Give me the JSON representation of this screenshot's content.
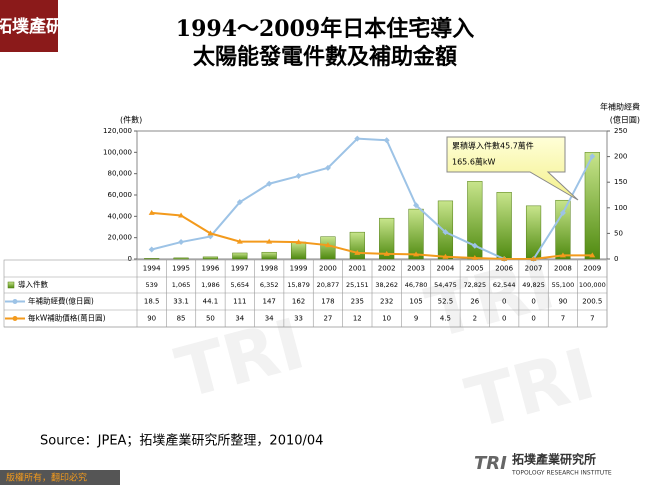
{
  "brand": "拓墣產研",
  "chart_data": {
    "type": "bar",
    "title": [
      "1994～2009年日本住宅導入",
      "太陽能發電件數及補助金額"
    ],
    "ylabel": "(件數)",
    "y2label": [
      "年補助經費",
      "(億日圓)"
    ],
    "annotation": [
      "累積導入件數45.7萬件",
      "165.6萬kW"
    ],
    "categories": [
      "1994",
      "1995",
      "1996",
      "1997",
      "1998",
      "1999",
      "2000",
      "2001",
      "2002",
      "2003",
      "2004",
      "2005",
      "2006",
      "2007",
      "2008",
      "2009"
    ],
    "series": [
      {
        "name": "導入件數",
        "type": "bar",
        "color": "#7fb82a",
        "values": [
          539,
          1065,
          1986,
          5654,
          6352,
          15879,
          20877,
          25151,
          38262,
          46780,
          54475,
          72825,
          62544,
          49825,
          55100,
          100000
        ],
        "value_labels": [
          "539",
          "1,065",
          "1,986",
          "5,654",
          "6,352",
          "15,879",
          "20,877",
          "25,151",
          "38,262",
          "46,780",
          "54,475",
          "72,825",
          "62,544",
          "49,825",
          "55,100",
          "100,000"
        ]
      },
      {
        "name": "年補助經費(億日圓)",
        "type": "line",
        "axis": "y2",
        "color": "#9dc3e6",
        "values": [
          18.5,
          33.1,
          44.1,
          111,
          147,
          162,
          178,
          235,
          232,
          105,
          52.5,
          26,
          0,
          0,
          90,
          200.5
        ]
      },
      {
        "name": "每kW補助價格(萬日圓)",
        "type": "line",
        "axis": "y2",
        "color": "#f39a1c",
        "values": [
          90,
          85,
          50,
          34,
          34,
          33,
          27,
          12,
          10,
          9,
          4.5,
          2,
          0,
          0,
          7,
          7
        ]
      }
    ],
    "ylim": [
      0,
      120000
    ],
    "yticks": [
      0,
      {
        "value": 20000,
        "label": "20,000"
      },
      {
        "value": 40000,
        "label": "40,000"
      },
      {
        "value": 60000,
        "label": "60,000"
      },
      {
        "value": 80000,
        "label": "80,000"
      },
      {
        "value": 100000,
        "label": "100,000"
      },
      {
        "value": 120000,
        "label": "120,000"
      }
    ],
    "y2lim": [
      0,
      250
    ],
    "y2ticks": [
      0,
      50,
      100,
      150,
      200,
      250
    ]
  },
  "source": "Source：JPEA；拓墣產業研究所整理，2010/04",
  "logo": {
    "name": "拓墣產業研究所",
    "sub": "TOPOLOGY RESEARCH INSTITUTE"
  },
  "copyright": "版權所有，翻印必究"
}
